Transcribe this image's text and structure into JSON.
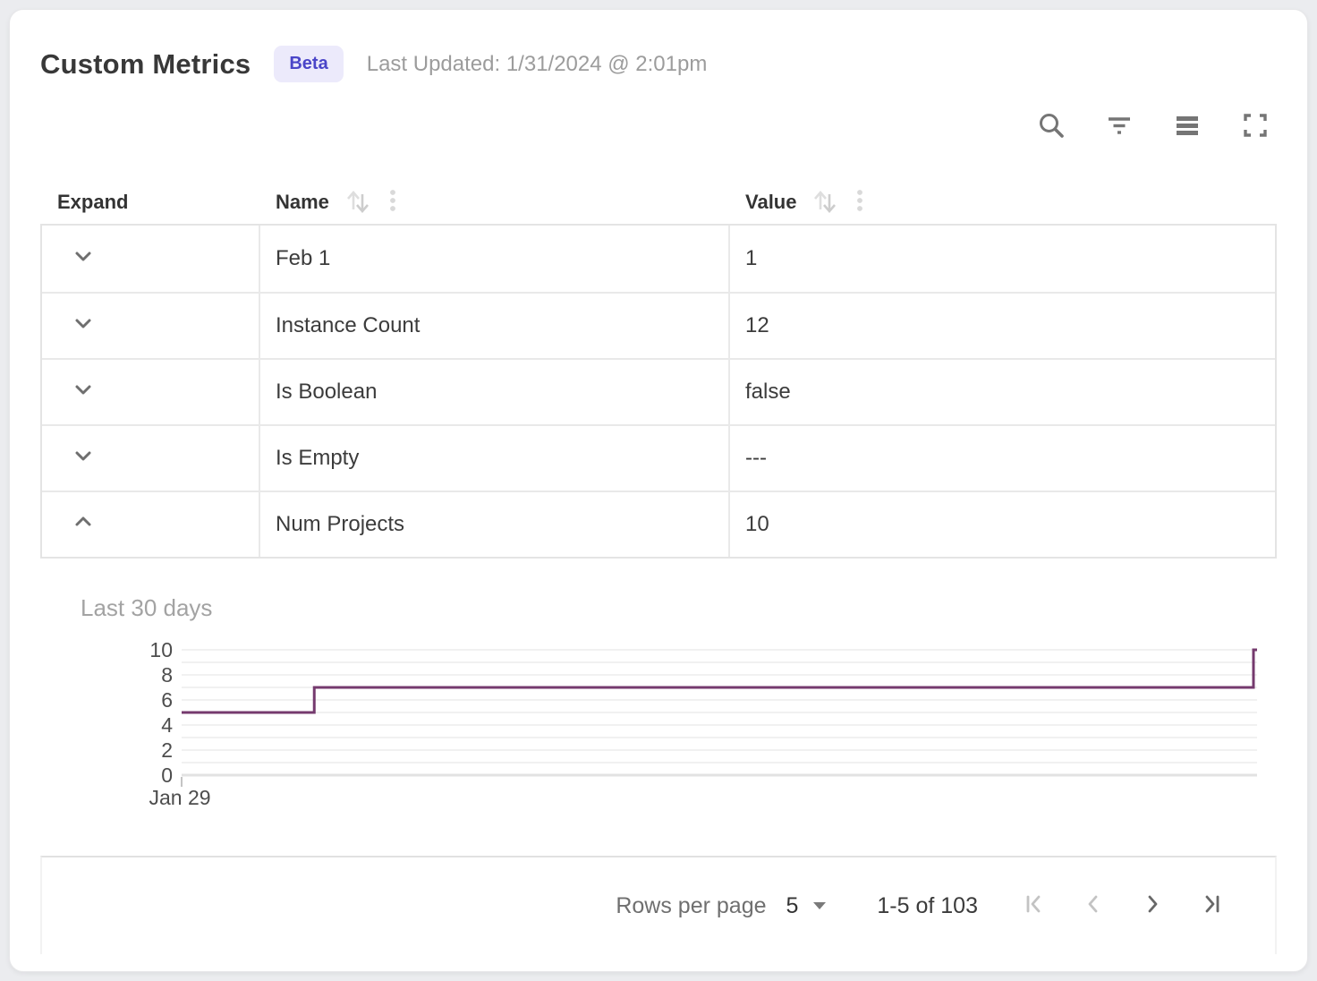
{
  "header": {
    "title": "Custom Metrics",
    "badge": "Beta",
    "last_updated": "Last Updated: 1/31/2024 @ 2:01pm"
  },
  "toolbar": {
    "icons": [
      "search-icon",
      "filter-icon",
      "density-icon",
      "fullscreen-icon"
    ],
    "icon_color": "#757575"
  },
  "table": {
    "columns": [
      {
        "label": "Expand",
        "sortable": false
      },
      {
        "label": "Name",
        "sortable": true
      },
      {
        "label": "Value",
        "sortable": true
      }
    ],
    "rows": [
      {
        "name": "Feb 1",
        "value": "1",
        "expanded": false
      },
      {
        "name": "Instance Count",
        "value": "12",
        "expanded": false
      },
      {
        "name": "Is Boolean",
        "value": "false",
        "expanded": false
      },
      {
        "name": "Is Empty",
        "value": "---",
        "expanded": false
      },
      {
        "name": "Num Projects",
        "value": "10",
        "expanded": true
      }
    ]
  },
  "expanded_panel": {
    "title": "Last 30 days"
  },
  "chart_data": {
    "type": "line",
    "subtype": "step",
    "title": "Last 30 days",
    "xlabel": "",
    "ylabel": "",
    "x_tick_labels": [
      "Jan 29"
    ],
    "xlim": [
      0,
      30
    ],
    "ylim": [
      0,
      10
    ],
    "yticks": [
      0,
      2,
      4,
      6,
      8,
      10
    ],
    "grid": true,
    "gridline_step": 1,
    "line_color": "#753a6e",
    "series": [
      {
        "name": "Num Projects",
        "points": [
          {
            "x": 0,
            "y": 5
          },
          {
            "x": 3.7,
            "y": 5
          },
          {
            "x": 3.7,
            "y": 7
          },
          {
            "x": 29.9,
            "y": 7
          },
          {
            "x": 29.9,
            "y": 10
          },
          {
            "x": 30,
            "y": 10
          }
        ]
      }
    ]
  },
  "pagination": {
    "rows_per_page_label": "Rows per page",
    "rows_per_page_value": "5",
    "range": "1-5 of 103",
    "icons": [
      "first-page-icon",
      "previous-page-icon",
      "next-page-icon",
      "last-page-icon"
    ],
    "first_enabled": false,
    "previous_enabled": false,
    "next_enabled": true,
    "last_enabled": true
  }
}
